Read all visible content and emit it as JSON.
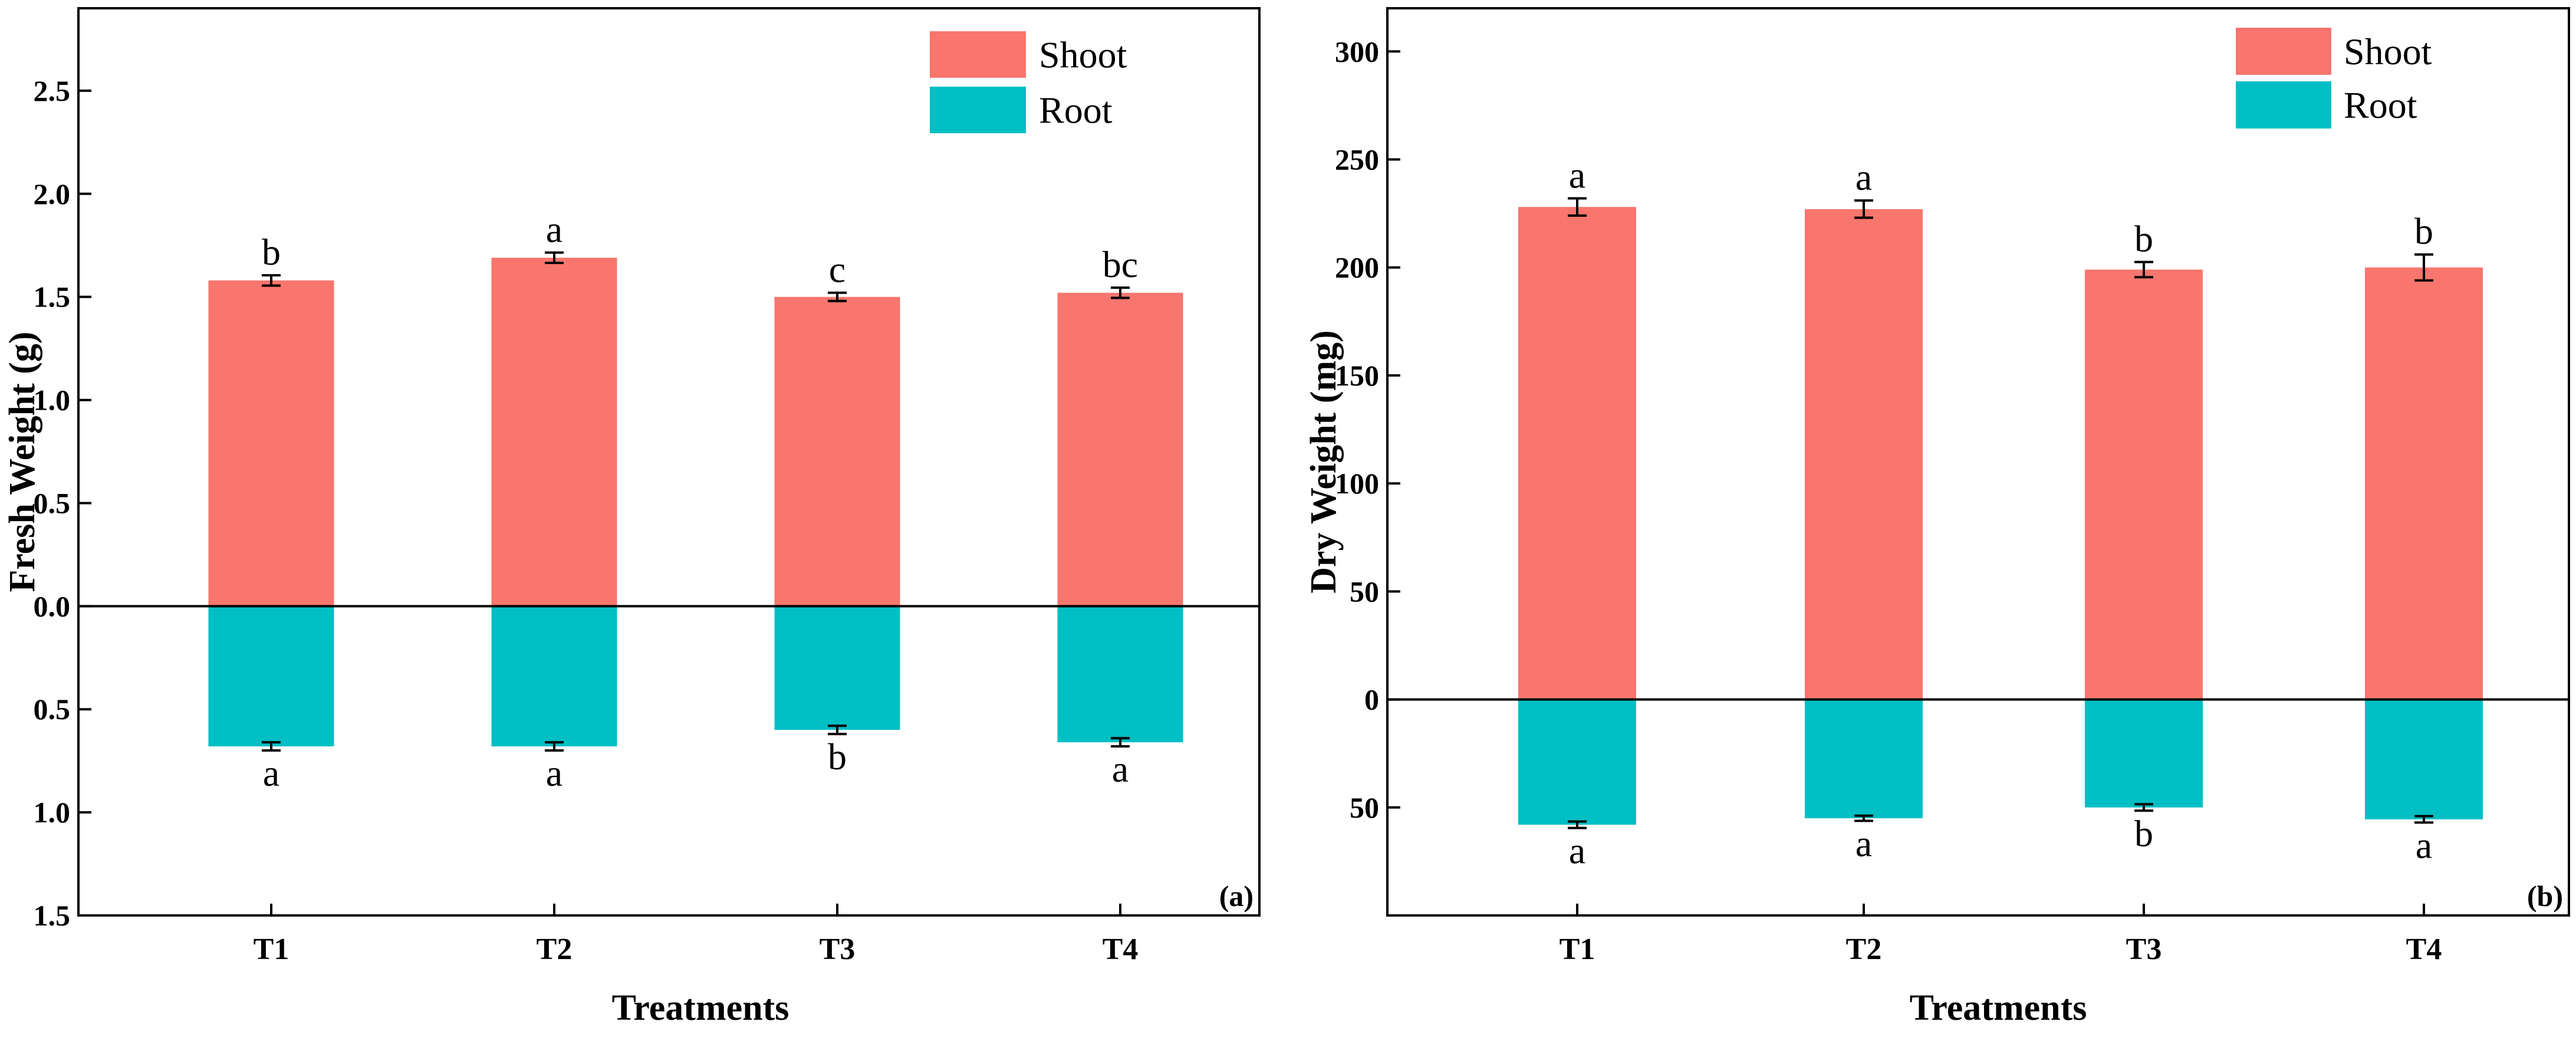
{
  "chart_data": [
    {
      "type": "bar",
      "panel_label": "(a)",
      "categories": [
        "T1",
        "T2",
        "T3",
        "T4"
      ],
      "xlabel": "Treatments",
      "ylabel": "Fresh Weight (g)",
      "ylim": [
        -1.5,
        2.9
      ],
      "y_ticks": [
        {
          "value": 2.5,
          "label": "2.5"
        },
        {
          "value": 2.0,
          "label": "2.0"
        },
        {
          "value": 1.5,
          "label": "1.5"
        },
        {
          "value": 1.0,
          "label": "1.0"
        },
        {
          "value": 0.5,
          "label": "0.5"
        },
        {
          "value": 0.0,
          "label": "0.0"
        },
        {
          "value": -0.5,
          "label": "0.5"
        },
        {
          "value": -1.0,
          "label": "1.0"
        },
        {
          "value": -1.5,
          "label": "1.5"
        }
      ],
      "legend_position": "top-right",
      "series": [
        {
          "name": "Shoot",
          "color": "#F8766D",
          "values": [
            1.58,
            1.69,
            1.5,
            1.52
          ],
          "errors": [
            0.025,
            0.025,
            0.02,
            0.025
          ],
          "significance": [
            "b",
            "a",
            "c",
            "bc"
          ]
        },
        {
          "name": "Root",
          "color": "#00BFC4",
          "values": [
            -0.68,
            -0.68,
            -0.6,
            -0.66
          ],
          "errors": [
            0.02,
            0.02,
            0.02,
            0.02
          ],
          "significance": [
            "a",
            "a",
            "b",
            "a"
          ]
        }
      ]
    },
    {
      "type": "bar",
      "panel_label": "(b)",
      "categories": [
        "T1",
        "T2",
        "T3",
        "T4"
      ],
      "xlabel": "Treatments",
      "ylabel": "Dry Weight (mg)",
      "ylim": [
        -100,
        320
      ],
      "y_ticks": [
        {
          "value": 300,
          "label": "300"
        },
        {
          "value": 250,
          "label": "250"
        },
        {
          "value": 200,
          "label": "200"
        },
        {
          "value": 150,
          "label": "150"
        },
        {
          "value": 100,
          "label": "100"
        },
        {
          "value": 50,
          "label": "50"
        },
        {
          "value": 0,
          "label": "0"
        },
        {
          "value": -50,
          "label": "50"
        }
      ],
      "legend_position": "top-right",
      "series": [
        {
          "name": "Shoot",
          "color": "#F8766D",
          "values": [
            228,
            227,
            199,
            200
          ],
          "errors": [
            4,
            4,
            3.5,
            6
          ],
          "significance": [
            "a",
            "a",
            "b",
            "b"
          ]
        },
        {
          "name": "Root",
          "color": "#00BFC4",
          "values": [
            -58,
            -55,
            -50,
            -55.5
          ],
          "errors": [
            1.5,
            1.2,
            1.5,
            1.5
          ],
          "significance": [
            "a",
            "a",
            "b",
            "a"
          ]
        }
      ]
    }
  ]
}
